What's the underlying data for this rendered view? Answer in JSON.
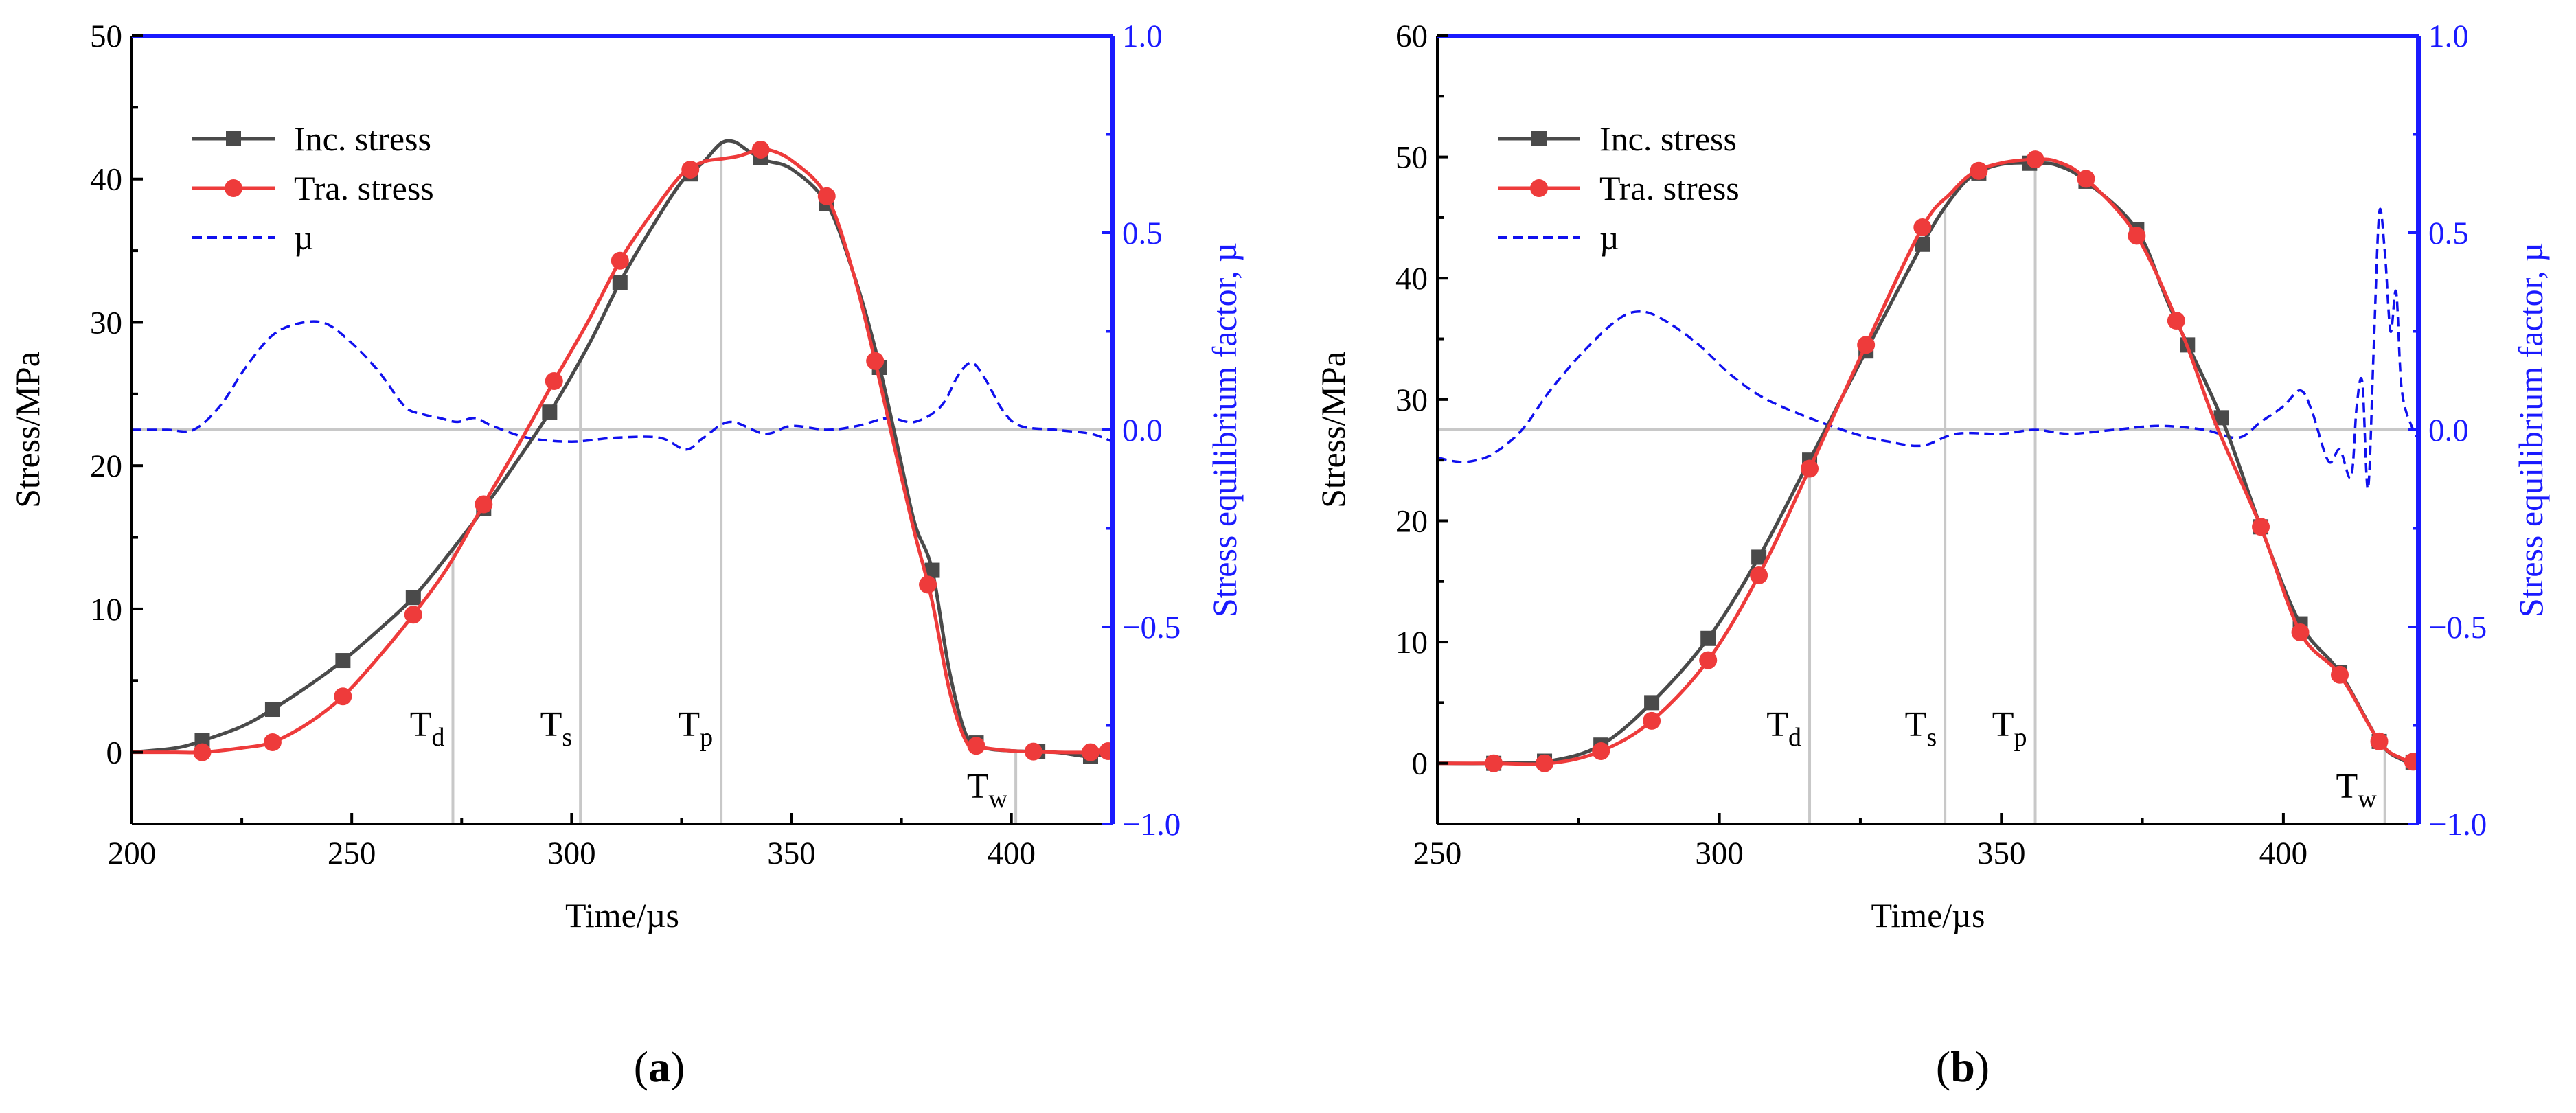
{
  "chart_data": [
    {
      "panel_label": "a",
      "type": "line",
      "xlabel": "Time/µs",
      "ylabel": "Stress/MPa",
      "y2label": "Stress equilibrium factor, µ",
      "xlim": [
        200,
        423
      ],
      "ylim": [
        -5,
        50
      ],
      "y2lim": [
        -1.0,
        1.0
      ],
      "xticks": [
        "200",
        "250",
        "300",
        "350",
        "400"
      ],
      "yticks": [
        "0",
        "10",
        "20",
        "30",
        "40",
        "50"
      ],
      "y2ticks": [
        "−1.0",
        "−0.5",
        "0.0",
        "0.5",
        "1.0"
      ],
      "legend": [
        "Inc. stress",
        "Tra. stress",
        "µ"
      ],
      "colors": {
        "inc": "#4a4a4a",
        "tra": "#ee3b3b",
        "mu": "#1010ee",
        "axis": "#000000",
        "axis2": "#1a1aff",
        "ref": "#c8c8c8"
      },
      "markers": [
        {
          "base": "T",
          "sub": "d",
          "x": 273
        },
        {
          "base": "T",
          "sub": "s",
          "x": 302
        },
        {
          "base": "T",
          "sub": "p",
          "x": 334
        },
        {
          "base": "T",
          "sub": "w",
          "x": 401
        }
      ],
      "series": [
        {
          "name": "Inc. stress",
          "x": [
            200,
            210,
            216,
            225,
            232,
            240,
            248,
            256,
            264,
            272,
            280,
            288,
            296,
            304,
            311,
            318,
            325,
            330,
            334,
            337,
            340,
            344,
            350,
            358,
            364,
            369,
            374,
            378,
            382,
            386,
            390,
            394,
            400,
            410,
            418,
            423
          ],
          "y": [
            0,
            0.3,
            0.8,
            1.8,
            3.0,
            4.6,
            6.4,
            8.5,
            10.8,
            13.8,
            17.0,
            20.5,
            24.2,
            28.5,
            32.8,
            36.5,
            39.8,
            41.2,
            42.5,
            42.6,
            42.0,
            41.3,
            40.7,
            38.3,
            33.5,
            28.2,
            21.5,
            16.0,
            12.7,
            5.5,
            1.0,
            0.3,
            0.1,
            0,
            -0.3,
            0.1
          ],
          "markers_x": [
            216,
            232,
            248,
            264,
            280,
            295,
            311,
            327,
            343,
            358,
            370,
            382,
            392,
            406,
            418
          ]
        },
        {
          "name": "Tra. stress",
          "x": [
            200,
            210,
            216,
            225,
            232,
            240,
            248,
            256,
            264,
            272,
            280,
            288,
            296,
            304,
            311,
            318,
            325,
            330,
            334,
            338,
            342,
            344,
            350,
            358,
            364,
            369,
            374,
            378,
            382,
            386,
            390,
            394,
            400,
            410,
            418,
            423
          ],
          "y": [
            0,
            0,
            0,
            0.3,
            0.7,
            2.0,
            3.9,
            6.6,
            9.6,
            13.0,
            17.3,
            21.5,
            25.9,
            30.2,
            34.3,
            37.5,
            40.3,
            41.2,
            41.4,
            41.6,
            42.0,
            42.1,
            41.3,
            38.8,
            33.5,
            27.3,
            20.5,
            15.3,
            10.5,
            4.2,
            0.6,
            0.3,
            0.1,
            0,
            0,
            0.1
          ],
          "markers_x": [
            216,
            232,
            248,
            264,
            280,
            296,
            311,
            327,
            343,
            358,
            369,
            381,
            392,
            405,
            418,
            422
          ]
        },
        {
          "name": "µ",
          "axis": "right",
          "x": [
            200,
            208,
            214,
            220,
            226,
            232,
            238,
            244,
            250,
            256,
            262,
            266,
            270,
            274,
            278,
            282,
            290,
            300,
            310,
            320,
            326,
            330,
            336,
            344,
            350,
            358,
            365,
            372,
            378,
            384,
            388,
            391,
            394,
            398,
            402,
            410,
            418,
            423
          ],
          "y": [
            0,
            0,
            0,
            0.06,
            0.16,
            0.24,
            0.27,
            0.27,
            0.22,
            0.15,
            0.06,
            0.04,
            0.03,
            0.02,
            0.03,
            0.01,
            -0.02,
            -0.03,
            -0.02,
            -0.02,
            -0.05,
            -0.02,
            0.02,
            -0.01,
            0.01,
            0.0,
            0.01,
            0.03,
            0.02,
            0.06,
            0.14,
            0.17,
            0.13,
            0.05,
            0.01,
            0.0,
            -0.01,
            -0.03
          ]
        }
      ]
    },
    {
      "panel_label": "b",
      "type": "line",
      "xlabel": "Time/µs",
      "ylabel": "Stress/MPa",
      "y2label": "Stress equilibrium factor, µ",
      "xlim": [
        250,
        424
      ],
      "ylim": [
        -5,
        60
      ],
      "y2lim": [
        -1.0,
        1.0
      ],
      "xticks": [
        "250",
        "300",
        "350",
        "400"
      ],
      "yticks": [
        "0",
        "10",
        "20",
        "30",
        "40",
        "50",
        "60"
      ],
      "y2ticks": [
        "−1.0",
        "−0.5",
        "0.0",
        "0.5",
        "1.0"
      ],
      "legend": [
        "Inc. stress",
        "Tra. stress",
        "µ"
      ],
      "colors": {
        "inc": "#4a4a4a",
        "tra": "#ee3b3b",
        "mu": "#1010ee",
        "axis": "#000000",
        "axis2": "#1a1aff",
        "ref": "#c8c8c8"
      },
      "markers": [
        {
          "base": "T",
          "sub": "d",
          "x": 316
        },
        {
          "base": "T",
          "sub": "s",
          "x": 340
        },
        {
          "base": "T",
          "sub": "p",
          "x": 356
        },
        {
          "base": "T",
          "sub": "w",
          "x": 418
        }
      ],
      "series": [
        {
          "name": "Inc. stress",
          "x": [
            250,
            260,
            270,
            279,
            288,
            298,
            307,
            316,
            326,
            336,
            341,
            345,
            350,
            356,
            360,
            365,
            374,
            380,
            389,
            396,
            403,
            410,
            417,
            421,
            424
          ],
          "y": [
            0,
            0,
            0.2,
            1.5,
            5.0,
            10.3,
            17.0,
            25.0,
            34.0,
            42.8,
            46.5,
            48.5,
            49.4,
            49.5,
            49.3,
            48.0,
            44.0,
            37.5,
            28.5,
            19.5,
            11.5,
            7.5,
            1.8,
            0.3,
            0
          ],
          "markers_x": [
            260,
            269,
            279,
            288,
            298,
            307,
            316,
            326,
            336,
            346,
            355,
            365,
            374,
            383,
            389,
            396,
            403,
            410,
            417,
            423
          ]
        },
        {
          "name": "Tra. stress",
          "x": [
            250,
            260,
            270,
            279,
            288,
            298,
            307,
            316,
            326,
            336,
            341,
            345,
            350,
            356,
            360,
            365,
            374,
            382,
            388,
            396,
            403,
            410,
            417,
            421,
            424
          ],
          "y": [
            0,
            0,
            0,
            1.0,
            3.5,
            8.5,
            15.5,
            24.3,
            34.5,
            44.2,
            47.0,
            48.7,
            49.5,
            49.8,
            49.6,
            48.2,
            43.5,
            35.5,
            28.0,
            19.5,
            10.8,
            7.3,
            1.8,
            0.4,
            0
          ],
          "markers_x": [
            260,
            269,
            279,
            288,
            298,
            307,
            316,
            326,
            336,
            346,
            356,
            365,
            374,
            381,
            396,
            403,
            410,
            417,
            423
          ]
        },
        {
          "name": "µ",
          "axis": "right",
          "x": [
            250,
            253,
            256,
            260,
            265,
            270,
            276,
            282,
            286,
            290,
            296,
            302,
            308,
            316,
            324,
            330,
            336,
            342,
            350,
            356,
            362,
            370,
            378,
            386,
            392,
            396,
            400,
            403,
            405,
            408,
            410,
            412,
            413,
            414,
            415,
            416,
            417,
            418,
            419,
            420,
            421,
            423,
            424
          ],
          "y": [
            -0.07,
            -0.08,
            -0.08,
            -0.06,
            0.0,
            0.1,
            0.2,
            0.28,
            0.3,
            0.28,
            0.22,
            0.14,
            0.08,
            0.03,
            -0.01,
            -0.03,
            -0.04,
            -0.01,
            -0.01,
            0.0,
            -0.01,
            0.0,
            0.01,
            0.0,
            -0.02,
            0.02,
            0.06,
            0.1,
            0.05,
            -0.08,
            -0.05,
            -0.12,
            0.06,
            0.12,
            -0.15,
            0.2,
            0.55,
            0.45,
            0.25,
            0.35,
            0.1,
            0.0,
            -0.02
          ]
        }
      ]
    }
  ]
}
